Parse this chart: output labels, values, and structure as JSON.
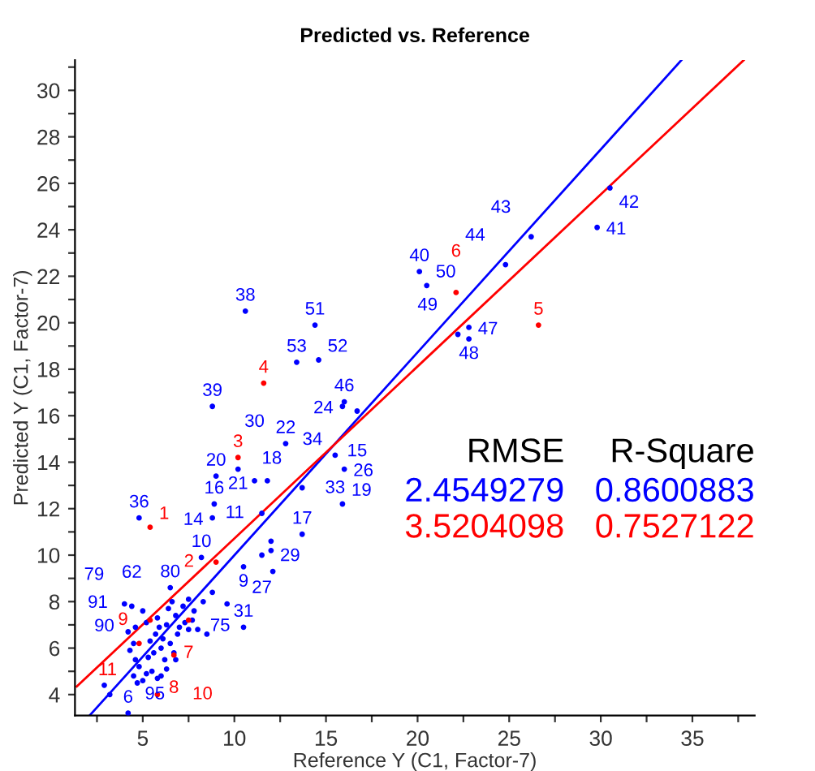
{
  "chart_data": {
    "type": "scatter",
    "title": "Predicted vs. Reference",
    "xlabel": "Reference Y (C1, Factor-7)",
    "ylabel": "Predicted Y (C1, Factor-7)",
    "xlim": [
      1.3,
      38.4
    ],
    "ylim": [
      3.1,
      31.3
    ],
    "xticks": [
      {
        "value": 2.5,
        "label": null
      },
      5,
      {
        "value": 7.5,
        "label": null
      },
      10,
      {
        "value": 12.5,
        "label": null
      },
      15,
      {
        "value": 17.5,
        "label": null
      },
      20,
      {
        "value": 22.5,
        "label": null
      },
      25,
      {
        "value": 27.5,
        "label": null
      },
      30,
      {
        "value": 32.5,
        "label": null
      },
      35,
      {
        "value": 37.5,
        "label": null
      }
    ],
    "yticks": [
      4,
      {
        "value": 5,
        "label": null
      },
      6,
      {
        "value": 7,
        "label": null
      },
      8,
      {
        "value": 9,
        "label": null
      },
      10,
      {
        "value": 11,
        "label": null
      },
      12,
      {
        "value": 13,
        "label": null
      },
      14,
      {
        "value": 15,
        "label": null
      },
      16,
      {
        "value": 17,
        "label": null
      },
      18,
      {
        "value": 19,
        "label": null
      },
      20,
      {
        "value": 21,
        "label": null
      },
      22,
      {
        "value": 23,
        "label": null
      },
      24,
      {
        "value": 25,
        "label": null
      },
      26,
      {
        "value": 27,
        "label": null
      },
      28,
      {
        "value": 29,
        "label": null
      },
      30,
      {
        "value": 31,
        "label": null
      }
    ],
    "grid": false,
    "legend": false,
    "marker": "circle",
    "series": [
      {
        "color": "#0000ff",
        "x": [
          10.6,
          14.4,
          13.4,
          14.6,
          30.5,
          29.8,
          26.2,
          24.8,
          20.1,
          20.5,
          22.8,
          22.2,
          22.8,
          8.8,
          16.0,
          16.7,
          15.9,
          12.8,
          15.5,
          16.0,
          15.9,
          13.7,
          13.7,
          9.0,
          10.2,
          4.8,
          8.9,
          8.8,
          8.2,
          11.1,
          11.8,
          11.5,
          12.0,
          12.0,
          11.5,
          10.5,
          12.1,
          10.5,
          9.6,
          4.2,
          2.9,
          3.2,
          6.5,
          4.2,
          4.5,
          4.3,
          4.6,
          4.8,
          4.5,
          4.7,
          5.0,
          5.2,
          5.5,
          5.3,
          5.6,
          5.4,
          5.7,
          5.9,
          5.2,
          5.0,
          4.4,
          4.0,
          5.8,
          6.0,
          6.2,
          6.1,
          6.3,
          6.4,
          6.6,
          6.8,
          6.5,
          6.7,
          6.9,
          7.2,
          7.5,
          7.8,
          7.3,
          7.0,
          6.0,
          5.8,
          6.3,
          7.5,
          8.0,
          8.5,
          6.8,
          4.6,
          7.7,
          8.3,
          8.8
        ],
        "values": [
          20.5,
          19.9,
          18.3,
          18.4,
          25.8,
          24.1,
          23.7,
          22.5,
          22.2,
          21.6,
          19.8,
          19.5,
          19.3,
          16.4,
          16.6,
          16.2,
          16.4,
          14.8,
          14.3,
          13.7,
          12.2,
          12.9,
          10.9,
          13.4,
          13.7,
          11.6,
          12.2,
          11.6,
          9.9,
          13.2,
          13.2,
          11.8,
          10.6,
          10.2,
          10.0,
          9.5,
          9.3,
          6.9,
          7.9,
          3.2,
          4.4,
          4.0,
          8.6,
          6.7,
          6.2,
          5.9,
          5.5,
          5.2,
          4.8,
          4.5,
          4.6,
          4.9,
          5.0,
          5.6,
          5.8,
          6.3,
          6.6,
          6.9,
          7.1,
          7.6,
          7.8,
          7.9,
          7.3,
          6.0,
          5.5,
          6.4,
          7.0,
          7.7,
          8.0,
          7.4,
          6.2,
          5.8,
          6.6,
          7.8,
          8.1,
          7.6,
          7.1,
          6.9,
          4.8,
          4.7,
          5.1,
          6.8,
          6.8,
          6.6,
          5.5,
          6.9,
          7.2,
          8.0,
          8.4
        ]
      },
      {
        "color": "#ff0000",
        "x": [
          5.4,
          9.0,
          10.2,
          11.6,
          26.6,
          22.1,
          7.5,
          6.7,
          5.4,
          5.8,
          4.8
        ],
        "values": [
          11.2,
          9.7,
          14.2,
          17.4,
          19.9,
          21.3,
          7.2,
          5.7,
          7.2,
          4.0,
          6.2
        ]
      },
      {
        "type": "line",
        "marker": "none",
        "color": "#0000ff",
        "x": [
          2.1,
          34.4
        ],
        "values": [
          3.1,
          31.3
        ]
      },
      {
        "type": "line",
        "marker": "none",
        "color": "#ff0000",
        "x": [
          1.4,
          37.8
        ],
        "values": [
          4.35,
          31.3
        ]
      }
    ],
    "annotations": [
      "RMSE",
      "R-Square",
      "2.4549279",
      "0.8600883",
      "3.5204098",
      "0.7527122",
      {
        "text": "38",
        "x": 10.6,
        "y": 20.5
      },
      {
        "text": "51",
        "x": 14.4,
        "y": 19.9
      },
      {
        "text": "53",
        "x": 13.4,
        "y": 18.3
      },
      {
        "text": "52",
        "x": 14.6,
        "y": 18.4
      },
      {
        "text": "42",
        "x": 30.5,
        "y": 25.8
      },
      {
        "text": "41",
        "x": 29.8,
        "y": 24.1
      },
      {
        "text": "43",
        "x": 26.2,
        "y": 23.7
      },
      {
        "text": "44",
        "x": 24.8,
        "y": 22.5
      },
      {
        "text": "40",
        "x": 20.1,
        "y": 22.2
      },
      {
        "text": "50",
        "x": 20.5,
        "y": 21.6
      },
      {
        "text": "47",
        "x": 22.8,
        "y": 19.8
      },
      {
        "text": "48",
        "x": 22.8,
        "y": 19.3
      },
      {
        "text": "39",
        "x": 8.8,
        "y": 16.4
      },
      {
        "text": "46",
        "x": 16.0,
        "y": 16.6
      },
      {
        "text": "15",
        "x": 16.7,
        "y": 16.2
      },
      {
        "text": "22",
        "x": 12.8,
        "y": 14.8
      },
      {
        "text": "33",
        "x": 15.5,
        "y": 14.3
      },
      {
        "text": "26",
        "x": 16.0,
        "y": 13.7
      },
      {
        "text": "19",
        "x": 15.9,
        "y": 12.2
      },
      {
        "text": "18",
        "x": 13.7,
        "y": 12.9
      },
      {
        "text": "17",
        "x": 13.7,
        "y": 10.9
      },
      {
        "text": "20",
        "x": 9.0,
        "y": 13.4
      },
      {
        "text": "21",
        "x": 10.2,
        "y": 13.7
      },
      {
        "text": "36",
        "x": 4.8,
        "y": 11.6
      },
      {
        "text": "16",
        "x": 8.9,
        "y": 12.2
      },
      {
        "text": "14",
        "x": 8.8,
        "y": 11.6
      },
      {
        "text": "10",
        "x": 8.2,
        "y": 9.9
      },
      {
        "text": "30",
        "x": 11.1,
        "y": 13.2
      },
      {
        "text": "11",
        "x": 11.5,
        "y": 11.8
      },
      {
        "text": "29",
        "x": 12.0,
        "y": 10.6
      },
      {
        "text": "27",
        "x": 11.5,
        "y": 10.0
      },
      {
        "text": "9",
        "x": 10.5,
        "y": 9.5
      },
      {
        "text": "31",
        "x": 10.5,
        "y": 6.9
      },
      {
        "text": "6",
        "x": 4.2,
        "y": 3.2
      },
      {
        "text": "90",
        "x": 2.9,
        "y": 4.4
      },
      {
        "text": "95",
        "x": 3.2,
        "y": 4.0
      },
      {
        "text": "49",
        "x": 22.2,
        "y": 19.5
      },
      {
        "text": "24",
        "x": 15.9,
        "y": 16.4
      },
      {
        "text": "34",
        "x": 11.8,
        "y": 13.2
      },
      {
        "text": "91",
        "x": 4.2,
        "y": 6.7
      },
      {
        "text": "62",
        "x": 4.4,
        "y": 7.8
      },
      {
        "text": "80",
        "x": 6.5,
        "y": 8.6
      },
      {
        "text": "79",
        "x": 4.0,
        "y": 7.9
      },
      {
        "text": "75",
        "x": 7.5,
        "y": 8.1
      },
      {
        "text": "1",
        "x": 5.4,
        "y": 11.2
      },
      {
        "text": "2",
        "x": 9.0,
        "y": 9.7
      },
      {
        "text": "3",
        "x": 10.2,
        "y": 14.2
      },
      {
        "text": "4",
        "x": 11.6,
        "y": 17.4
      },
      {
        "text": "5",
        "x": 26.6,
        "y": 19.9
      },
      {
        "text": "6",
        "x": 22.1,
        "y": 21.3
      },
      {
        "text": "7",
        "x": 7.5,
        "y": 7.2
      },
      {
        "text": "8",
        "x": 6.7,
        "y": 5.7
      },
      {
        "text": "10",
        "x": 5.8,
        "y": 4.0
      },
      {
        "text": "9",
        "x": 5.4,
        "y": 7.2
      },
      {
        "text": "11",
        "x": 4.8,
        "y": 6.2
      }
    ]
  }
}
